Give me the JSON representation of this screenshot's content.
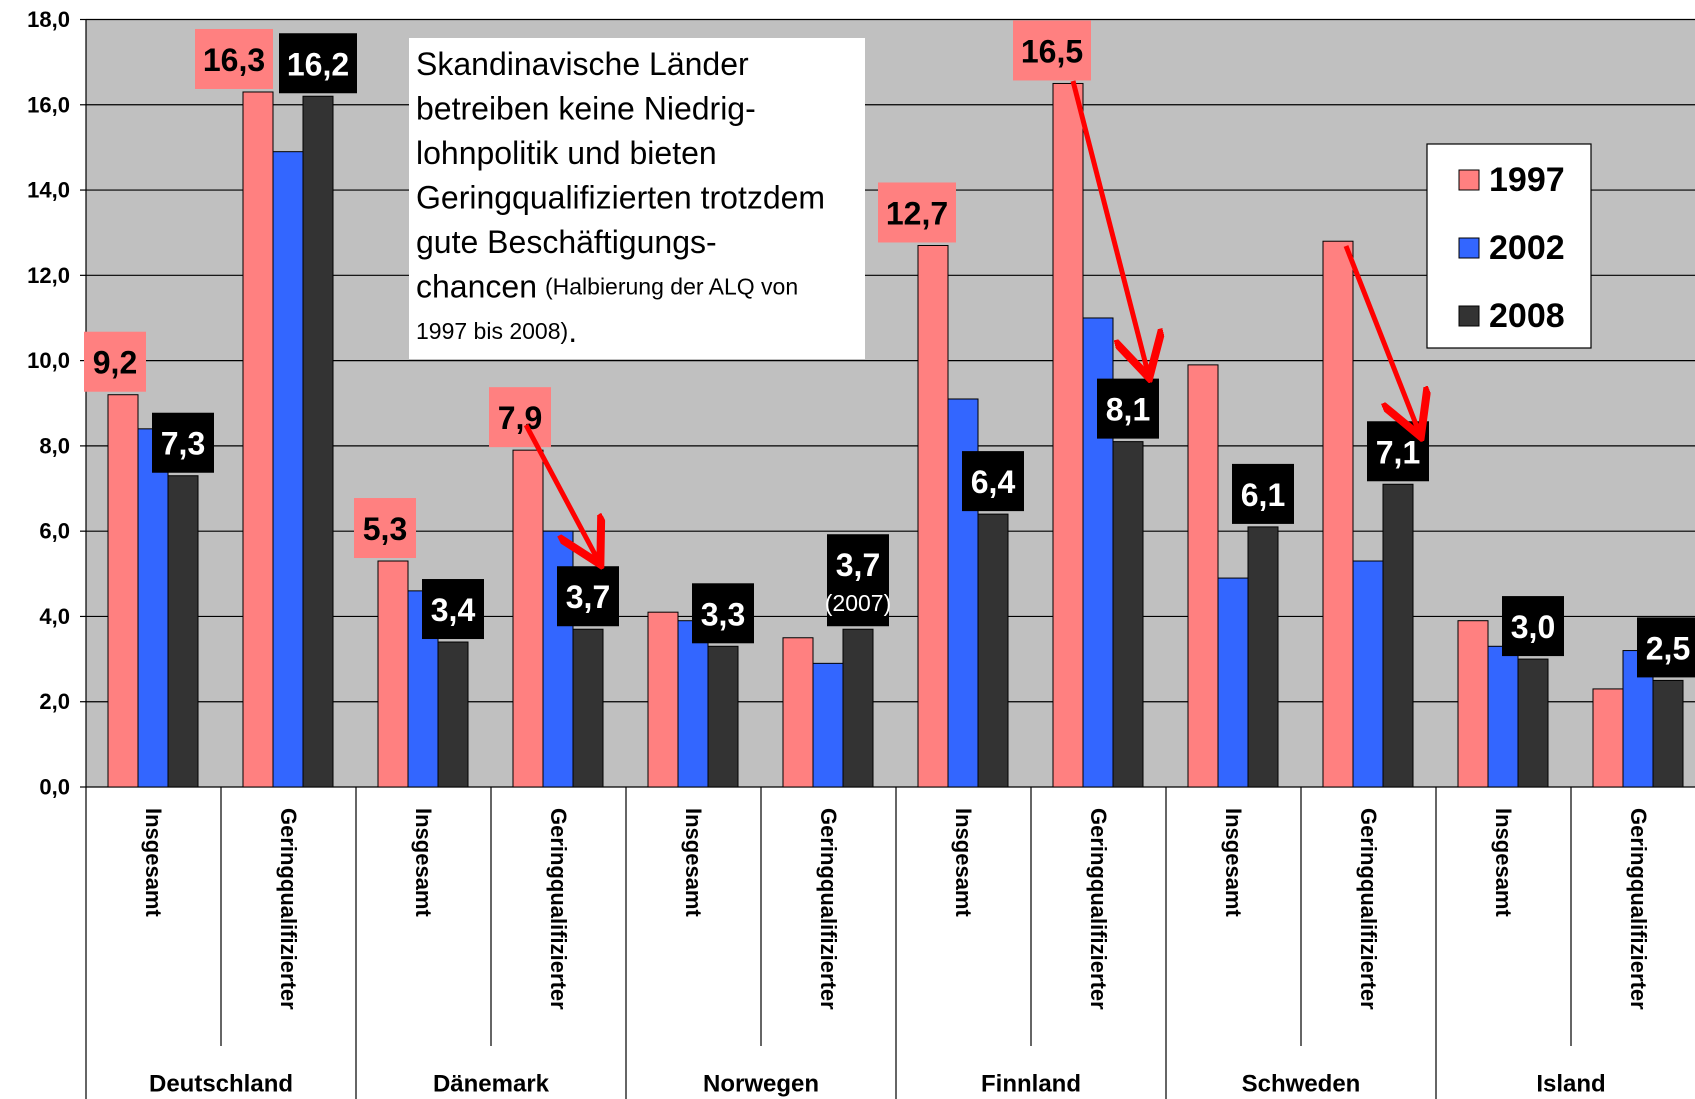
{
  "chart_data": {
    "type": "bar",
    "categories": [
      "Insgesamt",
      "Geringqualifizierter",
      "Insgesamt",
      "Geringqualifizierter",
      "Insgesamt",
      "Geringqualifizierter",
      "Insgesamt",
      "Geringqualifizierter",
      "Insgesamt",
      "Geringqualifizierter",
      "Insgesamt",
      "Geringqualifizierter"
    ],
    "groups": [
      "Deutschland",
      "Dänemark",
      "Norwegen",
      "Finnland",
      "Schweden",
      "Island"
    ],
    "series": [
      {
        "name": "1997",
        "color": "#ff8080",
        "values": [
          9.2,
          16.3,
          5.3,
          7.9,
          4.1,
          3.5,
          12.7,
          16.5,
          9.9,
          12.8,
          3.9,
          2.3
        ],
        "value_labels": [
          "9,2",
          "16,3",
          "5,3",
          "7,9",
          null,
          null,
          "12,7",
          "16,5",
          null,
          null,
          null,
          null
        ]
      },
      {
        "name": "2002",
        "color": "#3366ff",
        "values": [
          8.4,
          14.9,
          4.6,
          6.0,
          3.9,
          2.9,
          9.1,
          11.0,
          4.9,
          5.3,
          3.3,
          3.2
        ]
      },
      {
        "name": "2008",
        "color": "#333333",
        "values": [
          7.3,
          16.2,
          3.4,
          3.7,
          3.3,
          3.7,
          6.4,
          8.1,
          6.1,
          7.1,
          3.0,
          2.5
        ],
        "value_labels": [
          "7,3",
          "16,2",
          "3,4",
          "3,7",
          "3,3",
          "3,7",
          "6,4",
          "8,1",
          "6,1",
          "7,1",
          "3,0",
          "2,5"
        ],
        "value_notes": [
          null,
          null,
          null,
          null,
          null,
          "(2007)",
          null,
          null,
          null,
          null,
          null,
          null
        ]
      }
    ],
    "ylim": [
      0,
      18
    ],
    "yticks": [
      {
        "value": 0,
        "label": "0,0"
      },
      {
        "value": 2,
        "label": "2,0"
      },
      {
        "value": 4,
        "label": "4,0"
      },
      {
        "value": 6,
        "label": "6,0"
      },
      {
        "value": 8,
        "label": "8,0"
      },
      {
        "value": 10,
        "label": "10,0"
      },
      {
        "value": 12,
        "label": "12,0"
      },
      {
        "value": 14,
        "label": "14,0"
      },
      {
        "value": 16,
        "label": "16,0"
      },
      {
        "value": 18,
        "label": "18,0"
      }
    ],
    "grid": true,
    "legend": "upper right",
    "annotation": [
      [
        "Skandinavische Länder"
      ],
      [
        "betreiben keine Niedrig-"
      ],
      [
        "lohnpolitik und bieten"
      ],
      [
        "Geringqualifizierten trotzdem"
      ],
      [
        "gute Beschäftigungs-"
      ],
      [
        "chancen",
        "(Halbierung der ALQ von"
      ],
      [
        "1997 bis 2008)",
        "."
      ]
    ]
  }
}
